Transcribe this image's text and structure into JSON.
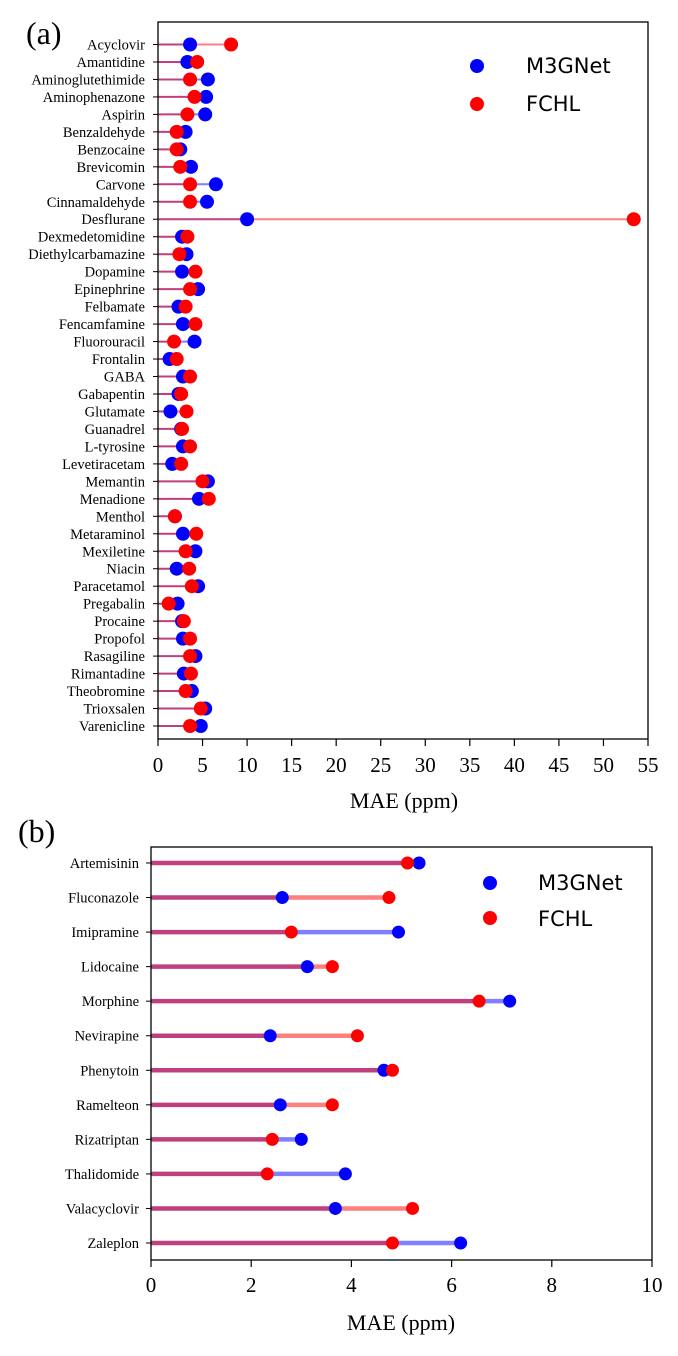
{
  "chart_data": [
    {
      "panel_label": "(a)",
      "type": "dumbbell",
      "xlabel": "MAE (ppm)",
      "xlim": [
        0,
        55
      ],
      "xticks": [
        0,
        5,
        10,
        15,
        20,
        25,
        30,
        35,
        40,
        45,
        50,
        55
      ],
      "legend": {
        "placement": "top-right",
        "entries": [
          "M3GNet",
          "FCHL"
        ]
      },
      "colors": {
        "M3GNet": "#0000ff",
        "FCHL": "#ff0000",
        "line_m3gnet": "#7f7fff",
        "line_fchl": "#ff7f7f",
        "line_shared": "#bf3f7f"
      },
      "categories": [
        "Acyclovir",
        "Amantidine",
        "Aminoglutethimide",
        "Aminophenazone",
        "Aspirin",
        "Benzaldehyde",
        "Benzocaine",
        "Brevicomin",
        "Carvone",
        "Cinnamaldehyde",
        "Desflurane",
        "Dexmedetomidine",
        "Diethylcarbamazine",
        "Dopamine",
        "Epinephrine",
        "Felbamate",
        "Fencamfamine",
        "Fluorouracil",
        "Frontalin",
        "GABA",
        "Gabapentin",
        "Glutamate",
        "Guanadrel",
        "L-tyrosine",
        "Levetiracetam",
        "Memantin",
        "Menadione",
        "Menthol",
        "Metaraminol",
        "Mexiletine",
        "Niacin",
        "Paracetamol",
        "Pregabalin",
        "Procaine",
        "Propofol",
        "Rasagiline",
        "Rimantadine",
        "Theobromine",
        "Trioxsalen",
        "Varenicline"
      ],
      "series": [
        {
          "name": "M3GNet",
          "values": [
            3.6,
            3.3,
            5.6,
            5.4,
            5.3,
            3.1,
            2.5,
            3.7,
            6.5,
            5.5,
            10.0,
            2.7,
            3.2,
            2.7,
            4.5,
            2.3,
            2.8,
            4.1,
            1.3,
            2.8,
            2.3,
            1.4,
            2.6,
            2.8,
            1.6,
            5.6,
            4.6,
            1.9,
            2.8,
            4.2,
            2.1,
            4.5,
            2.2,
            2.7,
            2.8,
            4.2,
            2.9,
            3.8,
            5.3,
            4.8
          ]
        },
        {
          "name": "FCHL",
          "values": [
            8.2,
            4.4,
            3.6,
            4.1,
            3.3,
            2.1,
            2.1,
            2.5,
            3.6,
            3.6,
            53.4,
            3.3,
            2.4,
            4.2,
            3.6,
            3.1,
            4.2,
            1.8,
            2.1,
            3.6,
            2.6,
            3.2,
            2.7,
            3.6,
            2.6,
            5.0,
            5.7,
            1.9,
            4.3,
            3.1,
            3.5,
            3.8,
            1.2,
            2.9,
            3.6,
            3.6,
            3.7,
            3.1,
            4.8,
            3.6
          ]
        }
      ]
    },
    {
      "panel_label": "(b)",
      "type": "dumbbell",
      "xlabel": "MAE (ppm)",
      "xlim": [
        0,
        10
      ],
      "xticks": [
        0,
        2,
        4,
        6,
        8,
        10
      ],
      "legend": {
        "placement": "top-right",
        "entries": [
          "M3GNet",
          "FCHL"
        ]
      },
      "colors": {
        "M3GNet": "#0000ff",
        "FCHL": "#ff0000",
        "line_m3gnet": "#7f7fff",
        "line_fchl": "#ff7f7f",
        "line_shared": "#bf3f7f"
      },
      "categories": [
        "Artemisinin",
        "Fluconazole",
        "Imipramine",
        "Lidocaine",
        "Morphine",
        "Nevirapine",
        "Phenytoin",
        "Ramelteon",
        "Rizatriptan",
        "Thalidomide",
        "Valacyclovir",
        "Zaleplon"
      ],
      "series": [
        {
          "name": "M3GNet",
          "values": [
            5.35,
            2.62,
            4.94,
            3.12,
            7.16,
            2.38,
            4.65,
            2.58,
            3.0,
            3.88,
            3.68,
            6.18
          ]
        },
        {
          "name": "FCHL",
          "values": [
            5.12,
            4.75,
            2.8,
            3.62,
            6.55,
            4.12,
            4.82,
            3.62,
            2.42,
            2.32,
            5.22,
            4.82
          ]
        }
      ]
    }
  ]
}
